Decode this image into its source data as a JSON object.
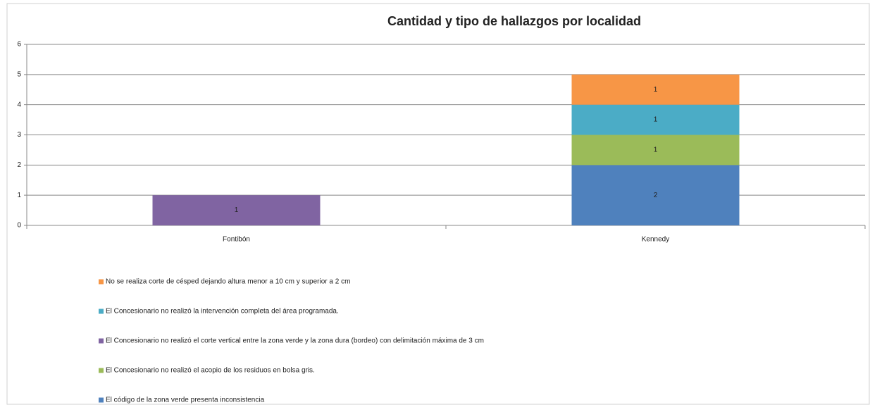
{
  "chart_data": {
    "type": "stacked_bar",
    "title": "Cantidad y tipo de hallazgos por localidad",
    "categories": [
      "Fontibón",
      "Kennedy"
    ],
    "series": [
      {
        "name": "El código de la zona verde presenta inconsistencia",
        "color": "#4f81bd",
        "values": [
          null,
          2
        ]
      },
      {
        "name": "El Concesionario no realizó el acopio de los residuos en bolsa gris.",
        "color": "#9bbb59",
        "values": [
          null,
          1
        ]
      },
      {
        "name": "El Concesionario no realizó el corte vertical entre la zona verde y la zona dura (bordeo) con delimitación máxima de 3 cm",
        "color": "#8064a2",
        "values": [
          1,
          null
        ]
      },
      {
        "name": "El Concesionario no realizó la intervención completa del área programada.",
        "color": "#4bacc6",
        "values": [
          null,
          1
        ]
      },
      {
        "name": "No se realiza corte de césped dejando altura menor a 10 cm y superior a 2 cm",
        "color": "#f79646",
        "values": [
          null,
          1
        ]
      }
    ],
    "ylim": [
      0,
      6
    ],
    "yticks": [
      0,
      1,
      2,
      3,
      4,
      5,
      6
    ],
    "grid": true
  }
}
